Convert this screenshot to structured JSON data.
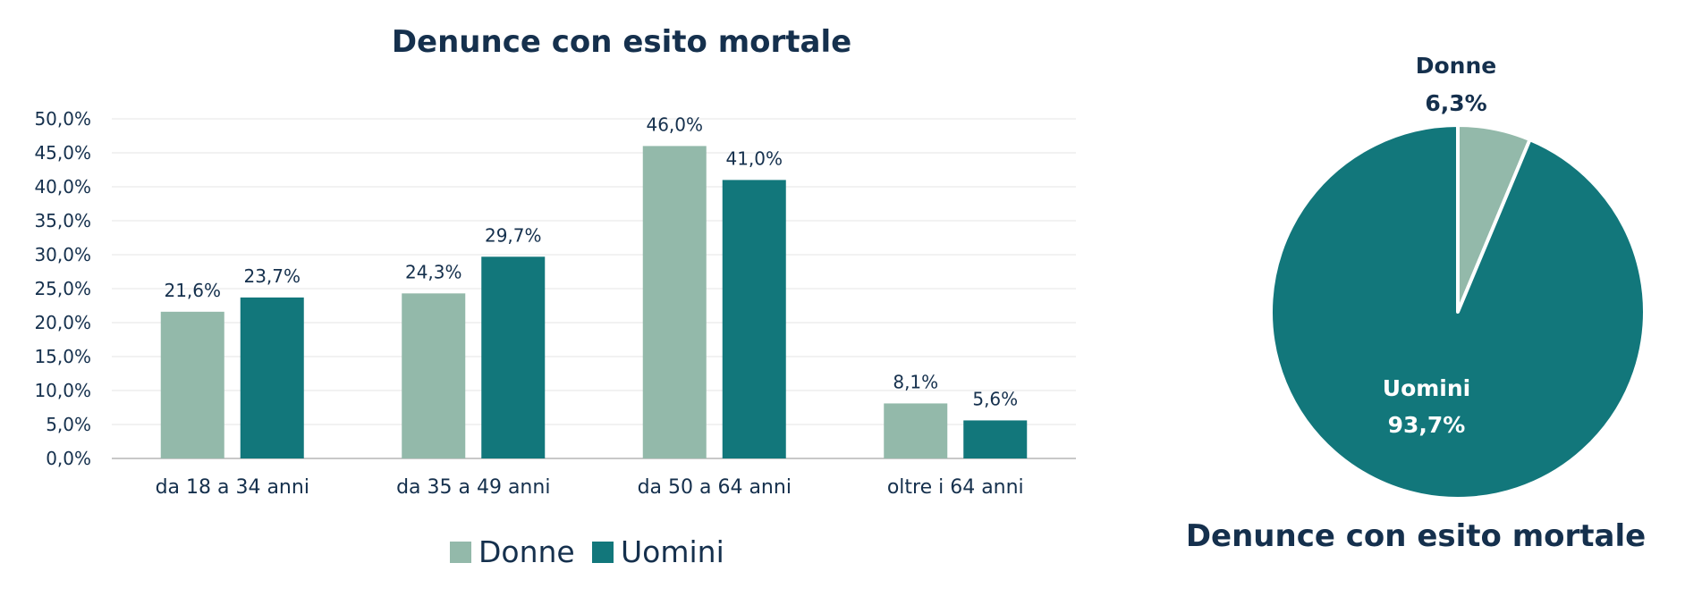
{
  "chart_data": [
    {
      "type": "bar",
      "title": "Denunce con esito mortale",
      "xlabel": "",
      "ylabel": "",
      "ylim": [
        0,
        50
      ],
      "yticks": [
        "0,0%",
        "5,0%",
        "10,0%",
        "15,0%",
        "20,0%",
        "25,0%",
        "30,0%",
        "35,0%",
        "40,0%",
        "45,0%",
        "50,0%"
      ],
      "grid": true,
      "legend": "bottom",
      "categories": [
        "da 18 a 34 anni",
        "da 35 a 49 anni",
        "da 50 a 64 anni",
        "oltre i 64 anni"
      ],
      "series": [
        {
          "name": "Donne",
          "color": "#93b9aa",
          "values": [
            21.6,
            24.3,
            46.0,
            8.1
          ],
          "labels": [
            "21,6%",
            "24,3%",
            "46,0%",
            "8,1%"
          ]
        },
        {
          "name": "Uomini",
          "color": "#12777b",
          "values": [
            23.7,
            29.7,
            41.0,
            5.6
          ],
          "labels": [
            "23,7%",
            "29,7%",
            "41,0%",
            "5,6%"
          ]
        }
      ]
    },
    {
      "type": "pie",
      "title": "Denunce con esito mortale",
      "slices": [
        {
          "name": "Donne",
          "value": 6.3,
          "label": "6,3%",
          "color": "#93b9aa"
        },
        {
          "name": "Uomini",
          "value": 93.7,
          "label": "93,7%",
          "color": "#12777b"
        }
      ]
    }
  ]
}
